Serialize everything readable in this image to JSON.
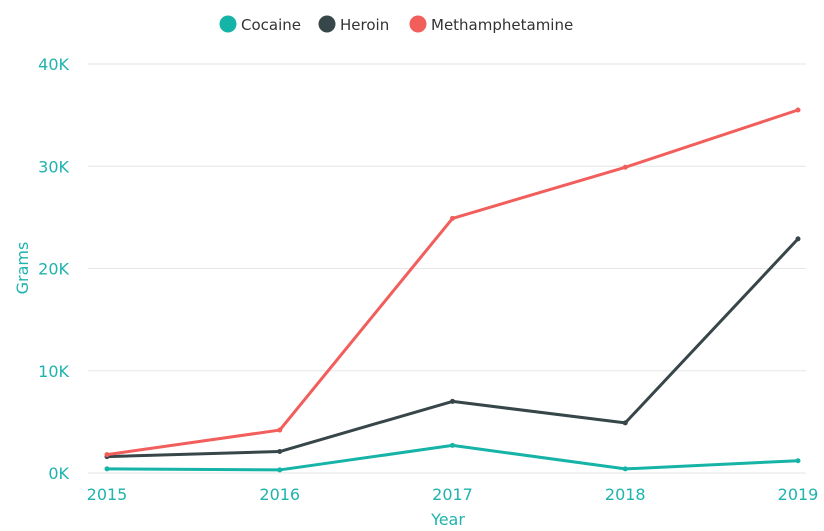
{
  "chart_data": {
    "type": "line",
    "title": "",
    "xlabel": "Year",
    "ylabel": "Grams",
    "x": [
      "2015",
      "2016",
      "2017",
      "2018",
      "2019"
    ],
    "y_ticks": [
      "0K",
      "10K",
      "20K",
      "30K",
      "40K"
    ],
    "ylim": [
      0,
      40000
    ],
    "grid": true,
    "legend_position": "top",
    "axis_color": "#1fb3ae",
    "grid_color": "#e6e6e6",
    "series": [
      {
        "name": "Cocaine",
        "color": "#16b3a7",
        "values": [
          400,
          300,
          2700,
          400,
          1200
        ]
      },
      {
        "name": "Heroin",
        "color": "#374649",
        "values": [
          1600,
          2100,
          7000,
          4900,
          22900
        ]
      },
      {
        "name": "Methamphetamine",
        "color": "#f15e5b",
        "values": [
          1800,
          4200,
          24900,
          29900,
          35500
        ]
      }
    ]
  }
}
